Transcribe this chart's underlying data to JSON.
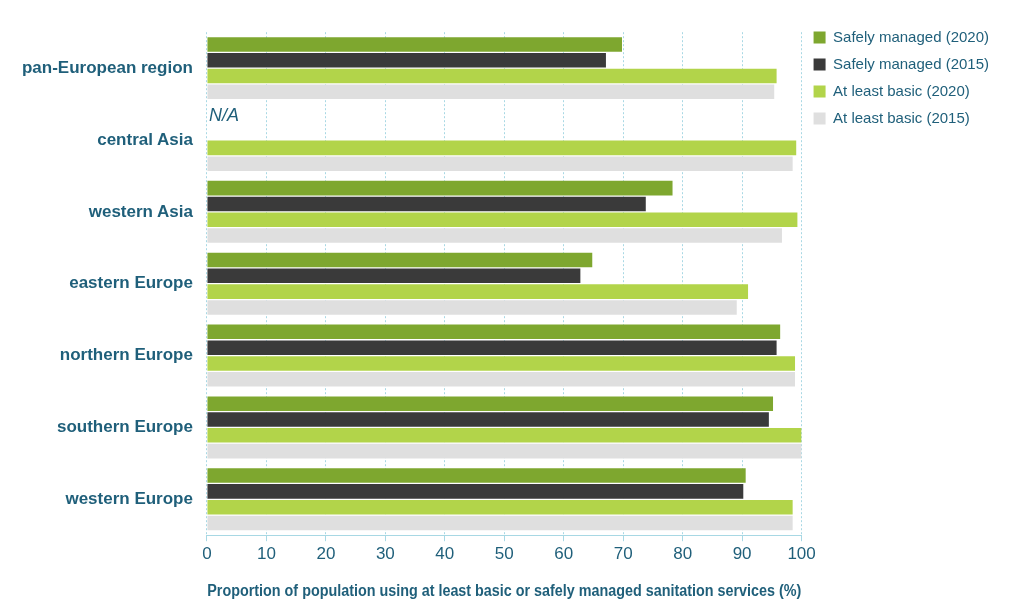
{
  "chart_data": {
    "type": "bar",
    "orientation": "horizontal",
    "xlabel": "Proportion of population using at least basic or safely managed sanitation services (%)",
    "categories": [
      "pan-European region",
      "central Asia",
      "western Asia",
      "eastern Europe",
      "northern Europe",
      "southern Europe",
      "western Europe"
    ],
    "series": [
      {
        "name": "Safely managed (2020)",
        "color": "#7ea72f",
        "values": [
          69.8,
          null,
          78.3,
          64.8,
          96.4,
          95.2,
          90.6
        ]
      },
      {
        "name": "Safely managed (2015)",
        "color": "#3a3a3a",
        "values": [
          67.1,
          null,
          73.8,
          62.8,
          95.8,
          94.5,
          90.2
        ]
      },
      {
        "name": "At least basic (2020)",
        "color": "#b2d44a",
        "values": [
          95.8,
          99.1,
          99.3,
          91.0,
          98.9,
          100,
          98.5
        ]
      },
      {
        "name": "At least basic (2015)",
        "color": "#dfdfdf",
        "values": [
          95.4,
          98.5,
          96.7,
          89.1,
          98.9,
          100,
          98.5
        ]
      }
    ],
    "xlim": [
      0,
      100
    ],
    "xticks": [
      0,
      10,
      20,
      30,
      40,
      50,
      60,
      70,
      80,
      90,
      100
    ],
    "grid": "x",
    "legend": "top right",
    "annotations": [
      {
        "text": "N/A",
        "x": 0,
        "y": "central Asia"
      }
    ]
  }
}
